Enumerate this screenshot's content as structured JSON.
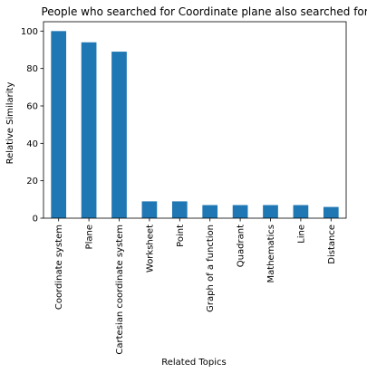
{
  "chart_data": {
    "type": "bar",
    "title": "People who searched for Coordinate plane also searched for:",
    "xlabel": "Related Topics",
    "ylabel": "Relative Similarity",
    "categories": [
      "Coordinate system",
      "Plane",
      "Cartesian coordinate system",
      "Worksheet",
      "Point",
      "Graph of a function",
      "Quadrant",
      "Mathematics",
      "Line",
      "Distance"
    ],
    "values": [
      100,
      94,
      89,
      9,
      9,
      7,
      7,
      7,
      7,
      6
    ],
    "ylim": [
      0,
      105
    ],
    "yticks": [
      0,
      20,
      40,
      60,
      80,
      100
    ],
    "grid": false,
    "legend": "none",
    "bar_color": "#1f77b4"
  }
}
